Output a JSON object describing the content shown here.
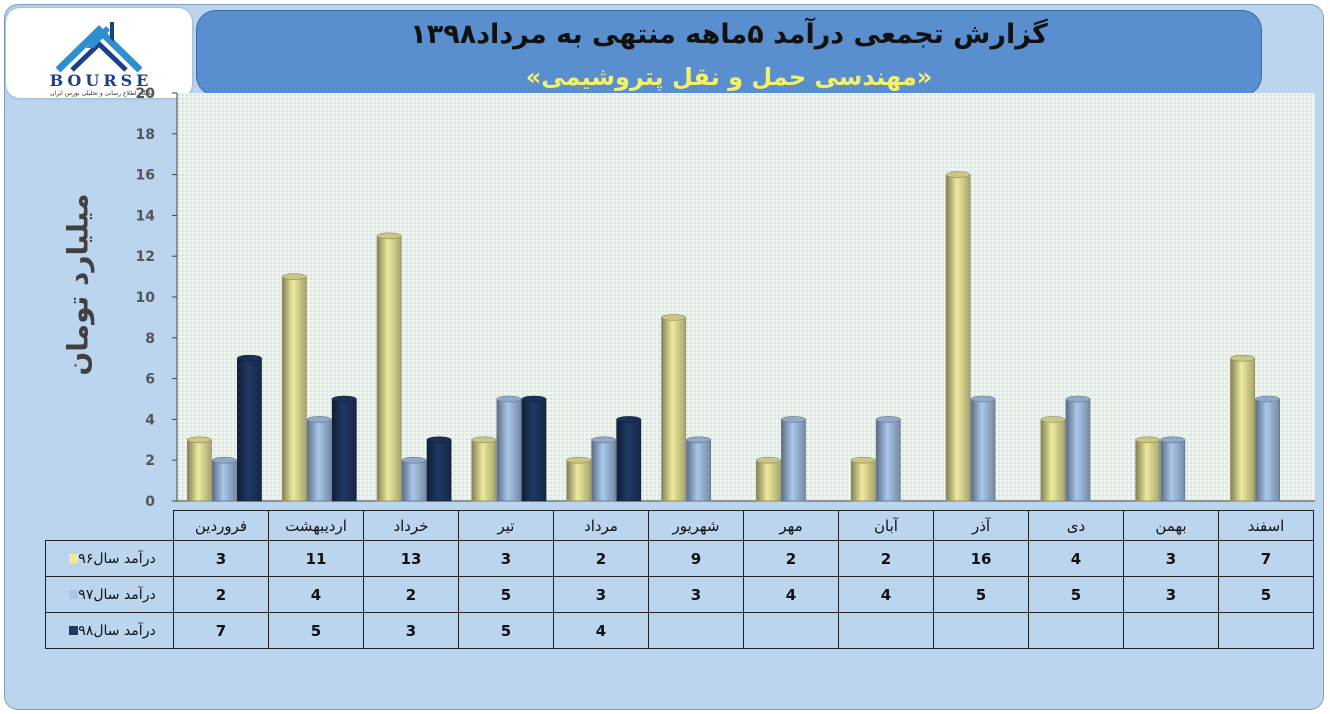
{
  "logo": {
    "word": "BOURSE",
    "subtitle": "پایگاه اطلاع رسانی و تحلیلی بورس ایران"
  },
  "header": {
    "title": "گزارش تجمعی درآمد ۵ماهه منتهی به مرداد۱۳۹۸",
    "subtitle": "«مهندسی حمل و نقل پتروشیمی»"
  },
  "chart_data": {
    "type": "bar",
    "ylabel": "میلیارد تومان",
    "ylim": [
      0,
      20
    ],
    "yticks": [
      0,
      2,
      4,
      6,
      8,
      10,
      12,
      14,
      16,
      18,
      20
    ],
    "grid": false,
    "legend": "data-table",
    "categories": [
      "فروردین",
      "اردیبهشت",
      "خرداد",
      "تیر",
      "مرداد",
      "شهریور",
      "مهر",
      "آبان",
      "آذر",
      "دی",
      "بهمن",
      "اسفند"
    ],
    "series": [
      {
        "name": "درآمد سال۹۶",
        "color": "#eeea9e",
        "values": [
          3,
          11,
          13,
          3,
          2,
          9,
          2,
          2,
          16,
          4,
          3,
          7
        ]
      },
      {
        "name": "درآمد سال۹۷",
        "color": "#a9c7ea",
        "values": [
          2,
          4,
          2,
          5,
          3,
          3,
          4,
          4,
          5,
          5,
          3,
          5
        ]
      },
      {
        "name": "درآمد سال۹۸",
        "color": "#1f3864",
        "values": [
          7,
          5,
          3,
          5,
          4,
          null,
          null,
          null,
          null,
          null,
          null,
          null
        ]
      }
    ]
  }
}
